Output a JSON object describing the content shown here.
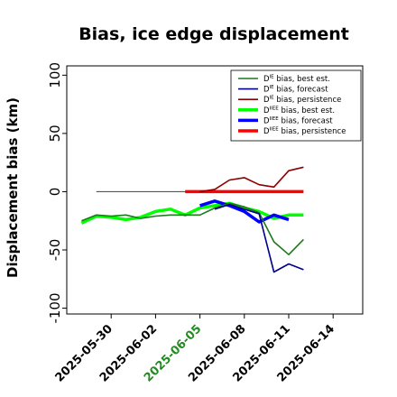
{
  "chart_data": {
    "type": "line",
    "title": "Bias, ice edge displacement",
    "ylabel": "Displacement bias (km)",
    "xlabel": "",
    "ylim": [
      -105,
      108
    ],
    "xlim": [
      "2025-05-27",
      "2025-06-16"
    ],
    "yticks": [
      100,
      50,
      0,
      -50,
      -100
    ],
    "xticks": [
      {
        "date": "2025-05-30",
        "label": "2025-05-30",
        "color": "#000000"
      },
      {
        "date": "2025-06-02",
        "label": "2025-06-02",
        "color": "#000000"
      },
      {
        "date": "2025-06-05",
        "label": "2025-06-05",
        "color": "#228b22"
      },
      {
        "date": "2025-06-08",
        "label": "2025-06-08",
        "color": "#000000"
      },
      {
        "date": "2025-06-11",
        "label": "2025-06-11",
        "color": "#000000"
      },
      {
        "date": "2025-06-14",
        "label": "2025-06-14",
        "color": "#000000"
      }
    ],
    "grid": false,
    "legend_position": "top-right",
    "reference_line": {
      "y": 0,
      "color": "#555555",
      "x_start": "2025-05-29",
      "x_end": "2025-06-05"
    },
    "series": [
      {
        "key": "de_best",
        "legend_main": "D",
        "legend_sup": "IE",
        "legend_rest": " bias, best est.",
        "color": "#1a7a1a",
        "width": 1.6,
        "points": [
          [
            "2025-05-28",
            -25
          ],
          [
            "2025-05-29",
            -20
          ],
          [
            "2025-05-30",
            -21
          ],
          [
            "2025-05-31",
            -20
          ],
          [
            "2025-06-01",
            -23
          ],
          [
            "2025-06-02",
            -21
          ],
          [
            "2025-06-03",
            -20
          ],
          [
            "2025-06-04",
            -20
          ],
          [
            "2025-06-05",
            -20
          ],
          [
            "2025-06-06",
            -14
          ],
          [
            "2025-06-07",
            -10
          ],
          [
            "2025-06-08",
            -13
          ],
          [
            "2025-06-09",
            -18
          ],
          [
            "2025-06-10",
            -43
          ],
          [
            "2025-06-11",
            -54
          ],
          [
            "2025-06-12",
            -41
          ]
        ]
      },
      {
        "key": "de_forecast",
        "legend_main": "D",
        "legend_sup": "IE",
        "legend_rest": " bias, forecast",
        "color": "#00008b",
        "width": 1.6,
        "points": [
          [
            "2025-06-06",
            -15
          ],
          [
            "2025-06-07",
            -11
          ],
          [
            "2025-06-08",
            -15
          ],
          [
            "2025-06-09",
            -19
          ],
          [
            "2025-06-10",
            -69
          ],
          [
            "2025-06-11",
            -62
          ],
          [
            "2025-06-12",
            -67
          ]
        ]
      },
      {
        "key": "de_persistence",
        "legend_main": "D",
        "legend_sup": "IE",
        "legend_rest": " bias, persistence",
        "color": "#8b0000",
        "width": 1.6,
        "points": [
          [
            "2025-06-05",
            0
          ],
          [
            "2025-06-06",
            2
          ],
          [
            "2025-06-07",
            10
          ],
          [
            "2025-06-08",
            12
          ],
          [
            "2025-06-09",
            6
          ],
          [
            "2025-06-10",
            4
          ],
          [
            "2025-06-11",
            18
          ],
          [
            "2025-06-12",
            21
          ]
        ]
      },
      {
        "key": "diiee_best",
        "legend_main": "D",
        "legend_sup": "IIEE",
        "legend_rest": " bias, best est.",
        "color": "#00ff00",
        "width": 3.5,
        "points": [
          [
            "2025-05-28",
            -27
          ],
          [
            "2025-05-29",
            -21
          ],
          [
            "2025-05-30",
            -22
          ],
          [
            "2025-05-31",
            -24
          ],
          [
            "2025-06-01",
            -22
          ],
          [
            "2025-06-02",
            -17
          ],
          [
            "2025-06-03",
            -15
          ],
          [
            "2025-06-04",
            -20
          ],
          [
            "2025-06-05",
            -14
          ],
          [
            "2025-06-06",
            -12
          ],
          [
            "2025-06-07",
            -10
          ],
          [
            "2025-06-08",
            -14
          ],
          [
            "2025-06-09",
            -17
          ],
          [
            "2025-06-10",
            -23
          ],
          [
            "2025-06-11",
            -20
          ],
          [
            "2025-06-12",
            -20
          ]
        ]
      },
      {
        "key": "diiee_forecast",
        "legend_main": "D",
        "legend_sup": "IIEE",
        "legend_rest": " bias, forecast",
        "color": "#0000ff",
        "width": 3.5,
        "points": [
          [
            "2025-06-05",
            -12
          ],
          [
            "2025-06-06",
            -8
          ],
          [
            "2025-06-07",
            -12
          ],
          [
            "2025-06-08",
            -17
          ],
          [
            "2025-06-09",
            -26
          ],
          [
            "2025-06-10",
            -20
          ],
          [
            "2025-06-11",
            -24
          ]
        ]
      },
      {
        "key": "diiee_persistence",
        "legend_main": "D",
        "legend_sup": "IIEE",
        "legend_rest": " bias, persistence",
        "color": "#ff0000",
        "width": 3.5,
        "points": [
          [
            "2025-06-04",
            0
          ],
          [
            "2025-06-12",
            0
          ]
        ]
      }
    ]
  }
}
